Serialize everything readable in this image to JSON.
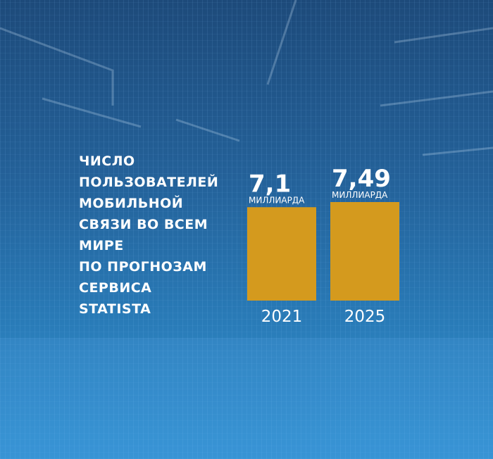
{
  "chart_data": {
    "type": "bar",
    "title_lines": [
      "ЧИСЛО",
      "ПОЛЬЗОВАТЕЛЕЙ",
      "МОБИЛЬНОЙ",
      "СВЯЗИ ВО ВСЕМ",
      "МИРЕ",
      "ПО ПРОГНОЗАМ",
      "СЕРВИСА",
      "STATISTA"
    ],
    "categories": [
      "2021",
      "2025"
    ],
    "values": [
      7.1,
      7.49
    ],
    "value_labels": [
      "7,1",
      "7,49"
    ],
    "unit": "МИЛЛИАРДА",
    "color": "#d49a1e"
  }
}
